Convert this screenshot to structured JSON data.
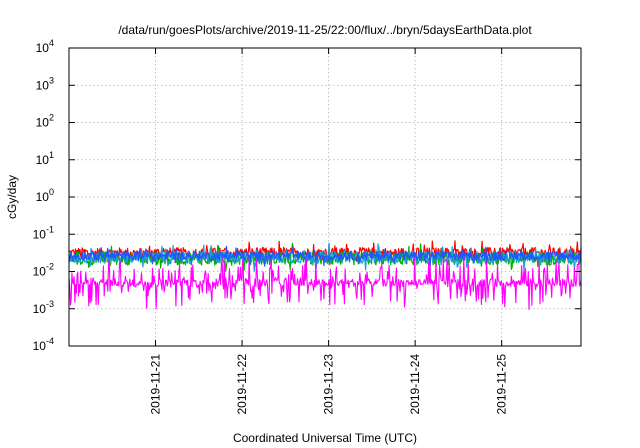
{
  "chart_data": {
    "type": "line",
    "title": "/data/run/goesPlots/archive/2019-11-25/22:00/flux/../bryn/5daysEarthData.plot",
    "xlabel": "Coordinated Universal Time (UTC)",
    "ylabel": "cGy/day",
    "yscale": "log",
    "ylim_exp": [
      -4,
      4
    ],
    "y_ticks": [
      {
        "base": "10",
        "exp": "-4"
      },
      {
        "base": "10",
        "exp": "-3"
      },
      {
        "base": "10",
        "exp": "-2"
      },
      {
        "base": "10",
        "exp": "-1"
      },
      {
        "base": "10",
        "exp": "0"
      },
      {
        "base": "10",
        "exp": "1"
      },
      {
        "base": "10",
        "exp": "2"
      },
      {
        "base": "10",
        "exp": "3"
      },
      {
        "base": "10",
        "exp": "4"
      }
    ],
    "xlim": [
      "2019-11-20T00:00",
      "2019-11-25T22:00"
    ],
    "x_ticks": [
      "2019-11-21",
      "2019-11-22",
      "2019-11-23",
      "2019-11-24",
      "2019-11-25"
    ],
    "grid": true,
    "series": [
      {
        "color": "#ff0000",
        "center_log": -1.5,
        "spread": 0.14,
        "spike_prob": 0.12,
        "spike_amp": 0.22
      },
      {
        "color": "#00b000",
        "center_log": -1.65,
        "spread": 0.18,
        "spike_prob": 0.1,
        "spike_amp": 0.3
      },
      {
        "color": "#1a9fd6",
        "center_log": -1.62,
        "spread": 0.16,
        "spike_prob": 0.12,
        "spike_amp": 0.28
      },
      {
        "color": "#2255ff",
        "center_log": -1.58,
        "spread": 0.12,
        "spike_prob": 0.1,
        "spike_amp": 0.22
      },
      {
        "color": "#ff00ff",
        "center_log": -2.3,
        "spread": 0.1,
        "spike_prob": 0.42,
        "spike_amp": 0.65
      }
    ]
  }
}
